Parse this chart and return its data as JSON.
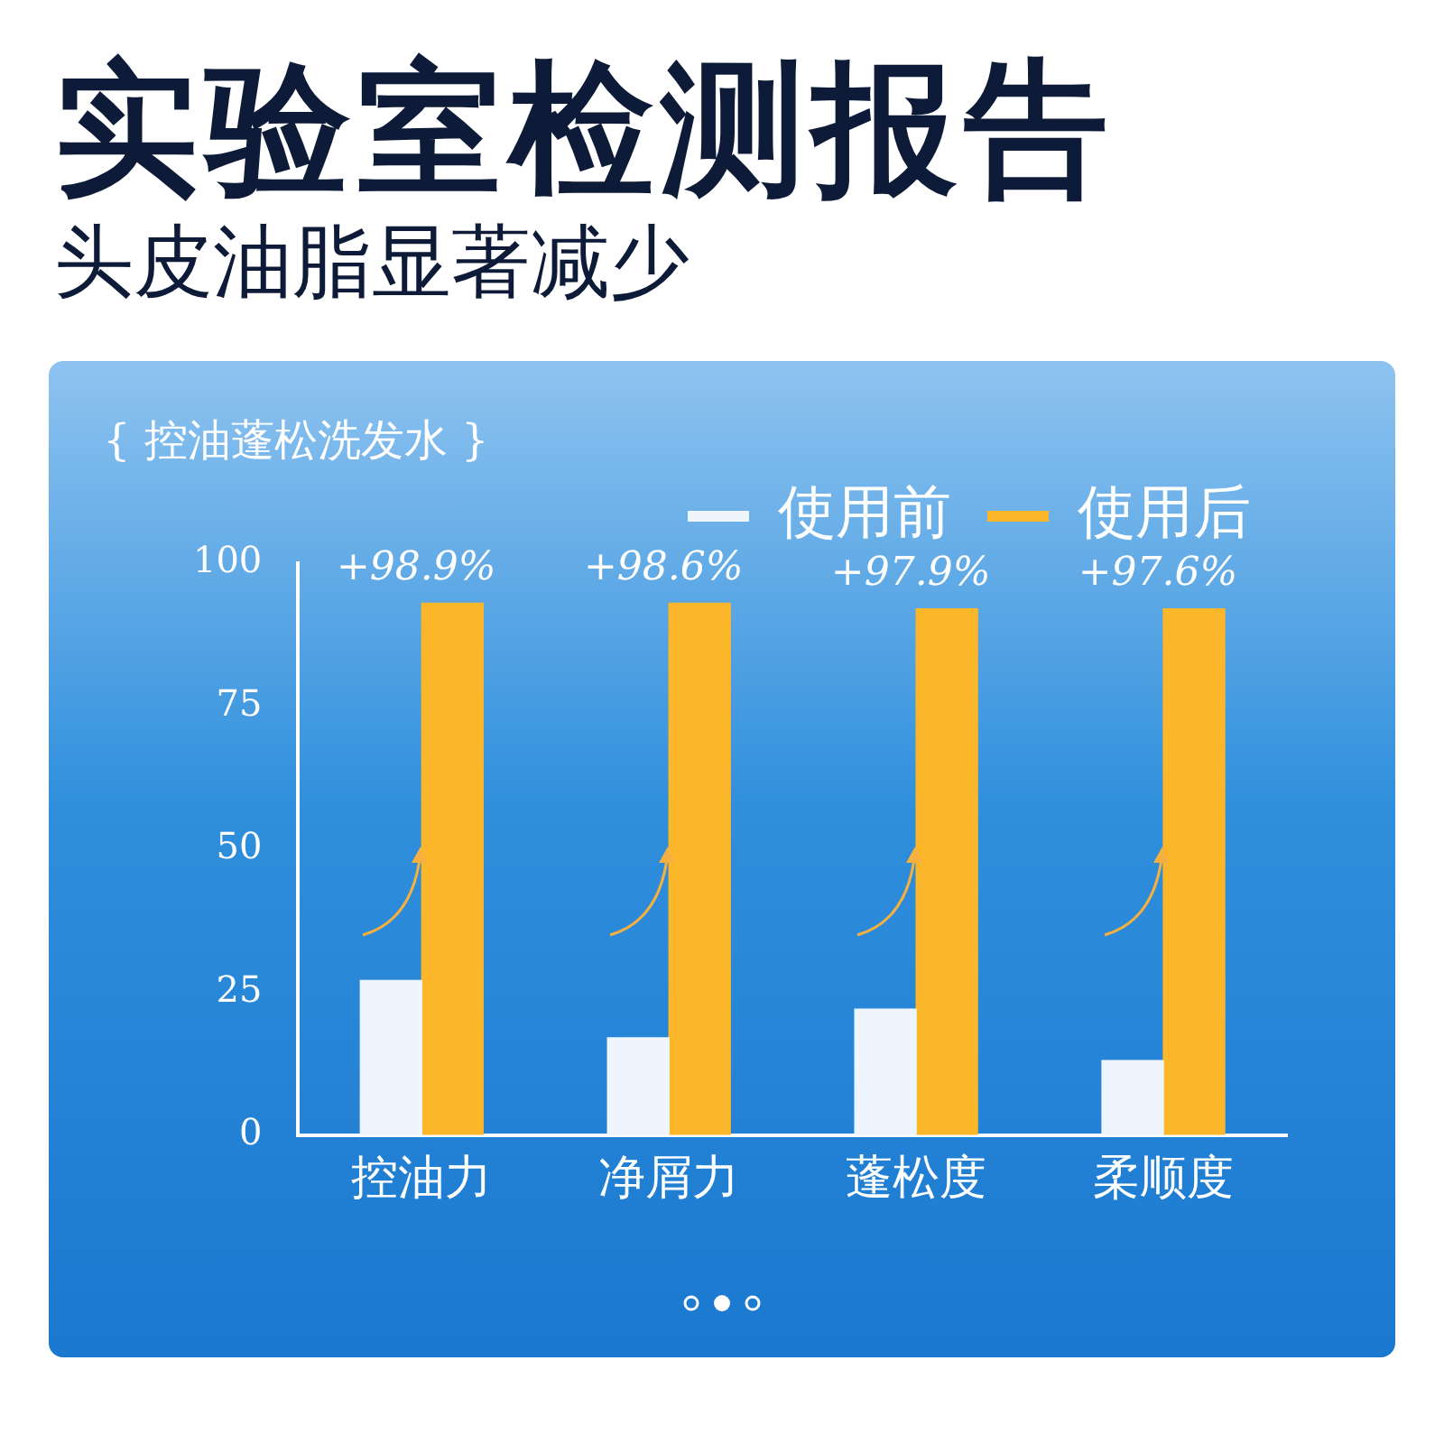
{
  "chart_data": {
    "type": "bar",
    "title": "实验室检测报告",
    "subtitle": "头皮油脂显著减少",
    "categories": [
      "控油力",
      "净屑力",
      "蓬松度",
      "柔顺度"
    ],
    "series": [
      {
        "name": "使用前",
        "color": "#eef5fd",
        "values": [
          27,
          17,
          22,
          13
        ]
      },
      {
        "name": "使用后",
        "color": "#fbb62a",
        "values": [
          93,
          93,
          92,
          92
        ]
      }
    ],
    "ylim": [
      0,
      100
    ],
    "yticks": [
      0,
      25,
      50,
      75,
      100
    ],
    "grid": false,
    "legend": "top right",
    "annotations": [
      "{ 控油蓬松洗发水 }",
      {
        "text": "+98.9%",
        "x": "控油力",
        "y": 93
      },
      {
        "text": "+98.6%",
        "x": "净屑力",
        "y": 93
      },
      {
        "text": "+97.9%",
        "x": "蓬松度",
        "y": 92
      },
      {
        "text": "+97.6%",
        "x": "柔顺度",
        "y": 92
      }
    ]
  }
}
